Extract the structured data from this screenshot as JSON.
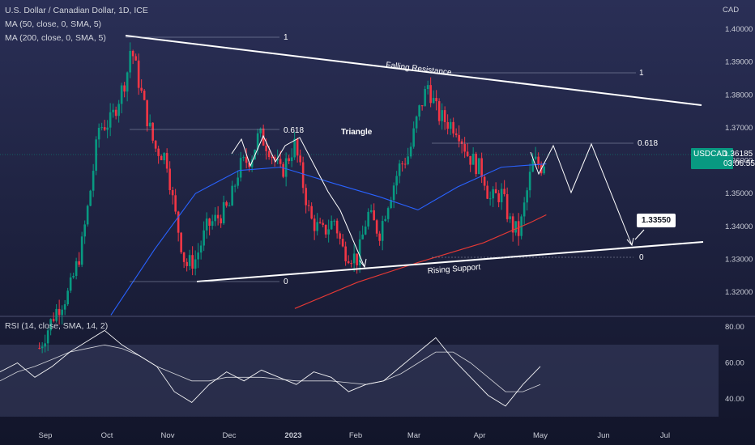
{
  "legend": {
    "title": "U.S. Dollar / Canadian Dollar, 1D, ICE",
    "ma50": "MA (50, close, 0, SMA, 5)",
    "ma200": "MA (200, close, 0, SMA, 5)",
    "rsi": "RSI (14, close, SMA, 14, 2)"
  },
  "currency": "CAD",
  "price_tag": {
    "symbol": "USDCAD",
    "price": "1.36185",
    "countdown": "03:06:55",
    "color": "#089981"
  },
  "colors": {
    "background": "#1b1f3a",
    "up_candle": "#089981",
    "down_candle": "#f23645",
    "ma50": "#2962ff",
    "ma200": "#e53935",
    "trendline": "#ffffff",
    "rsi_band": "#3a3f63"
  },
  "chart_data": [
    {
      "type": "candlestick",
      "title": "U.S. Dollar / Canadian Dollar, 1D, ICE",
      "ylabel": "CAD",
      "ylim": [
        1.315,
        1.405
      ],
      "y_ticks": [
        1.4,
        1.39,
        1.38,
        1.37,
        1.36,
        1.35,
        1.34,
        1.33,
        1.32
      ],
      "y_tick_labels": [
        "1.40000",
        "1.39000",
        "1.38000",
        "1.37000",
        "1.36000",
        "1.35000",
        "1.34000",
        "1.33000",
        "1.32000"
      ],
      "x_ticks": [
        "Sep",
        "Oct",
        "Nov",
        "Dec",
        "2023",
        "Feb",
        "Mar",
        "Apr",
        "May",
        "Jun",
        "Jul"
      ],
      "last_price": 1.36185,
      "series": [
        {
          "name": "USDCAD",
          "points": [
            {
              "date": "Aug 29",
              "close": 1.303
            },
            {
              "date": "Sep 6",
              "close": 1.314
            },
            {
              "date": "Sep 13",
              "close": 1.32
            },
            {
              "date": "Sep 19",
              "close": 1.333
            },
            {
              "date": "Sep 23",
              "close": 1.348
            },
            {
              "date": "Sep 28",
              "close": 1.37
            },
            {
              "date": "Oct 3",
              "close": 1.372
            },
            {
              "date": "Oct 11",
              "close": 1.386
            },
            {
              "date": "Oct 13",
              "close": 1.395
            },
            {
              "date": "Oct 20",
              "close": 1.376
            },
            {
              "date": "Oct 25",
              "close": 1.364
            },
            {
              "date": "Oct 31",
              "close": 1.361
            },
            {
              "date": "Nov 4",
              "close": 1.346
            },
            {
              "date": "Nov 10",
              "close": 1.328
            },
            {
              "date": "Nov 15",
              "close": 1.33
            },
            {
              "date": "Nov 21",
              "close": 1.34
            },
            {
              "date": "Nov 25",
              "close": 1.342
            },
            {
              "date": "Dec 1",
              "close": 1.346
            },
            {
              "date": "Dec 6",
              "close": 1.358
            },
            {
              "date": "Dec 12",
              "close": 1.361
            },
            {
              "date": "Dec 16",
              "close": 1.368
            },
            {
              "date": "Dec 21",
              "close": 1.364
            },
            {
              "date": "Dec 27",
              "close": 1.356
            },
            {
              "date": "Jan 3",
              "close": 1.365
            },
            {
              "date": "Jan 6",
              "close": 1.356
            },
            {
              "date": "Jan 11",
              "close": 1.342
            },
            {
              "date": "Jan 17",
              "close": 1.338
            },
            {
              "date": "Jan 23",
              "close": 1.342
            },
            {
              "date": "Jan 27",
              "close": 1.333
            },
            {
              "date": "Feb 2",
              "close": 1.33
            },
            {
              "date": "Feb 7",
              "close": 1.344
            },
            {
              "date": "Feb 13",
              "close": 1.338
            },
            {
              "date": "Feb 17",
              "close": 1.347
            },
            {
              "date": "Feb 23",
              "close": 1.358
            },
            {
              "date": "Feb 28",
              "close": 1.362
            },
            {
              "date": "Mar 3",
              "close": 1.374
            },
            {
              "date": "Mar 8",
              "close": 1.383
            },
            {
              "date": "Mar 13",
              "close": 1.374
            },
            {
              "date": "Mar 17",
              "close": 1.372
            },
            {
              "date": "Mar 23",
              "close": 1.37
            },
            {
              "date": "Mar 28",
              "close": 1.362
            },
            {
              "date": "Apr 3",
              "close": 1.356
            },
            {
              "date": "Apr 6",
              "close": 1.348
            },
            {
              "date": "Apr 12",
              "close": 1.35
            },
            {
              "date": "Apr 17",
              "close": 1.34
            },
            {
              "date": "Apr 21",
              "close": 1.338
            },
            {
              "date": "Apr 26",
              "close": 1.354
            },
            {
              "date": "Apr 28",
              "close": 1.36
            },
            {
              "date": "May 2",
              "close": 1.358
            },
            {
              "date": "May 4",
              "close": 1.36185
            }
          ]
        },
        {
          "name": "MA 50",
          "points": [
            {
              "date": "Oct 3",
              "close": 1.313
            },
            {
              "date": "Oct 25",
              "close": 1.333
            },
            {
              "date": "Nov 15",
              "close": 1.35
            },
            {
              "date": "Dec 6",
              "close": 1.357
            },
            {
              "date": "Dec 27",
              "close": 1.358
            },
            {
              "date": "Jan 23",
              "close": 1.353
            },
            {
              "date": "Feb 13",
              "close": 1.349
            },
            {
              "date": "Mar 3",
              "close": 1.345
            },
            {
              "date": "Mar 23",
              "close": 1.352
            },
            {
              "date": "Apr 12",
              "close": 1.358
            },
            {
              "date": "May 4",
              "close": 1.359
            }
          ]
        },
        {
          "name": "MA 200",
          "points": [
            {
              "date": "Jan 3",
              "close": 1.315
            },
            {
              "date": "Feb 2",
              "close": 1.323
            },
            {
              "date": "Mar 3",
              "close": 1.329
            },
            {
              "date": "Apr 3",
              "close": 1.335
            },
            {
              "date": "Apr 26",
              "close": 1.341
            },
            {
              "date": "May 4",
              "close": 1.3435
            }
          ]
        }
      ],
      "annotations": {
        "pattern_label": "Triangle",
        "falling_resistance": "Falling Resistance",
        "rising_support": "Rising Support",
        "fib_top_left": "1",
        "fib_top_right": "1",
        "fib_618_left": "0.618",
        "fib_618_right": "0.618",
        "fib_0_left": "0",
        "fib_0_right": "0",
        "target": "1.33550"
      }
    },
    {
      "type": "line",
      "title": "RSI (14, close, SMA, 14, 2)",
      "ylim": [
        30,
        85
      ],
      "y_ticks": [
        80,
        60,
        40
      ],
      "y_tick_labels": [
        "80.00",
        "60.00",
        "40.00"
      ],
      "series": [
        {
          "name": "RSI",
          "values": [
            55,
            60,
            52,
            58,
            66,
            72,
            78,
            70,
            64,
            58,
            44,
            38,
            48,
            55,
            50,
            56,
            52,
            48,
            55,
            52,
            44,
            48,
            50,
            58,
            66,
            74,
            62,
            52,
            42,
            36,
            48,
            58
          ]
        },
        {
          "name": "RSI MA",
          "values": [
            50,
            55,
            58,
            62,
            66,
            68,
            70,
            68,
            64,
            58,
            54,
            50,
            50,
            52,
            52,
            52,
            51,
            50,
            50,
            50,
            49,
            48,
            50,
            54,
            60,
            66,
            66,
            60,
            52,
            44,
            44,
            48
          ]
        }
      ]
    }
  ]
}
